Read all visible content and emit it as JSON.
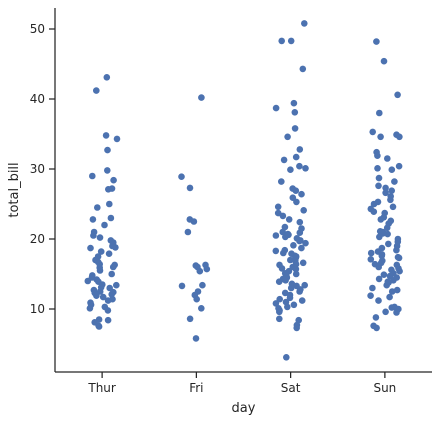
{
  "chart_data": {
    "type": "scatter",
    "subtype": "strip",
    "xlabel": "day",
    "ylabel": "total_bill",
    "categories": [
      "Thur",
      "Fri",
      "Sat",
      "Sun"
    ],
    "ylim": [
      1,
      53
    ],
    "yticks": [
      10,
      20,
      30,
      40,
      50
    ],
    "grid": false,
    "color": "#4c72b0",
    "series": [
      {
        "category": "Thur",
        "values": [
          43.1,
          41.2,
          34.8,
          34.3,
          32.7,
          29.8,
          29.0,
          28.4,
          27.1,
          27.2,
          25.0,
          24.5,
          23.0,
          22.8,
          22.0,
          21.0,
          20.5,
          19.8,
          19.5,
          19.0,
          18.7,
          18.2,
          17.9,
          17.5,
          17.0,
          16.7,
          16.3,
          16.0,
          15.9,
          15.5,
          15.0,
          14.8,
          14.5,
          14.2,
          13.9,
          13.5,
          13.4,
          13.1,
          13.0,
          12.7,
          12.5,
          12.4,
          12.1,
          11.9,
          11.7,
          11.4,
          11.2,
          10.9,
          10.3,
          10.1,
          9.8,
          8.5,
          8.4,
          8.1,
          7.6,
          7.5,
          16.4,
          18.8,
          20.2,
          14.0,
          12.3,
          10.6
        ]
      },
      {
        "category": "Fri",
        "values": [
          40.2,
          28.9,
          27.3,
          22.8,
          22.5,
          21.0,
          16.3,
          16.2,
          16.0,
          15.7,
          15.4,
          13.4,
          13.3,
          12.5,
          12.0,
          11.4,
          10.1,
          8.6,
          5.8
        ]
      },
      {
        "category": "Sat",
        "values": [
          50.8,
          48.3,
          48.3,
          44.3,
          39.4,
          38.7,
          38.1,
          35.8,
          34.6,
          32.8,
          31.7,
          31.3,
          30.4,
          30.1,
          29.9,
          28.2,
          27.2,
          26.9,
          26.4,
          25.9,
          25.3,
          24.6,
          24.1,
          23.7,
          23.3,
          22.8,
          22.4,
          21.7,
          21.5,
          21.0,
          20.9,
          20.7,
          20.6,
          20.5,
          20.3,
          20.1,
          19.8,
          19.7,
          19.4,
          19.1,
          18.7,
          18.4,
          18.3,
          18.0,
          17.9,
          17.6,
          17.5,
          17.3,
          17.0,
          16.9,
          16.6,
          16.4,
          16.3,
          16.0,
          15.8,
          15.7,
          15.4,
          15.1,
          15.0,
          14.8,
          14.5,
          14.3,
          14.1,
          13.9,
          13.6,
          13.4,
          13.3,
          13.0,
          12.8,
          12.5,
          12.3,
          12.0,
          11.6,
          11.4,
          11.2,
          11.0,
          10.8,
          10.6,
          10.3,
          10.1,
          9.8,
          9.6,
          8.6,
          8.4,
          7.7,
          7.3,
          3.1
        ]
      },
      {
        "category": "Sun",
        "values": [
          48.2,
          45.4,
          40.6,
          38.0,
          35.3,
          34.9,
          34.6,
          34.6,
          32.4,
          31.9,
          31.5,
          30.4,
          30.1,
          29.9,
          28.7,
          28.2,
          27.6,
          27.3,
          26.9,
          26.6,
          26.1,
          25.6,
          25.3,
          25.0,
          24.6,
          24.3,
          23.9,
          23.7,
          23.1,
          22.8,
          22.6,
          22.2,
          21.6,
          21.1,
          21.0,
          20.8,
          20.7,
          20.3,
          20.0,
          19.6,
          19.3,
          18.7,
          18.4,
          18.2,
          18.0,
          17.8,
          17.6,
          17.4,
          17.3,
          17.1,
          16.9,
          16.6,
          16.4,
          16.3,
          16.0,
          15.8,
          15.6,
          15.4,
          15.1,
          14.9,
          14.7,
          14.5,
          14.3,
          14.1,
          13.9,
          13.8,
          13.4,
          13.0,
          12.7,
          12.5,
          11.9,
          11.7,
          11.2,
          10.3,
          10.2,
          10.0,
          9.6,
          9.5,
          8.8,
          7.6,
          7.3,
          19.0
        ]
      }
    ]
  }
}
